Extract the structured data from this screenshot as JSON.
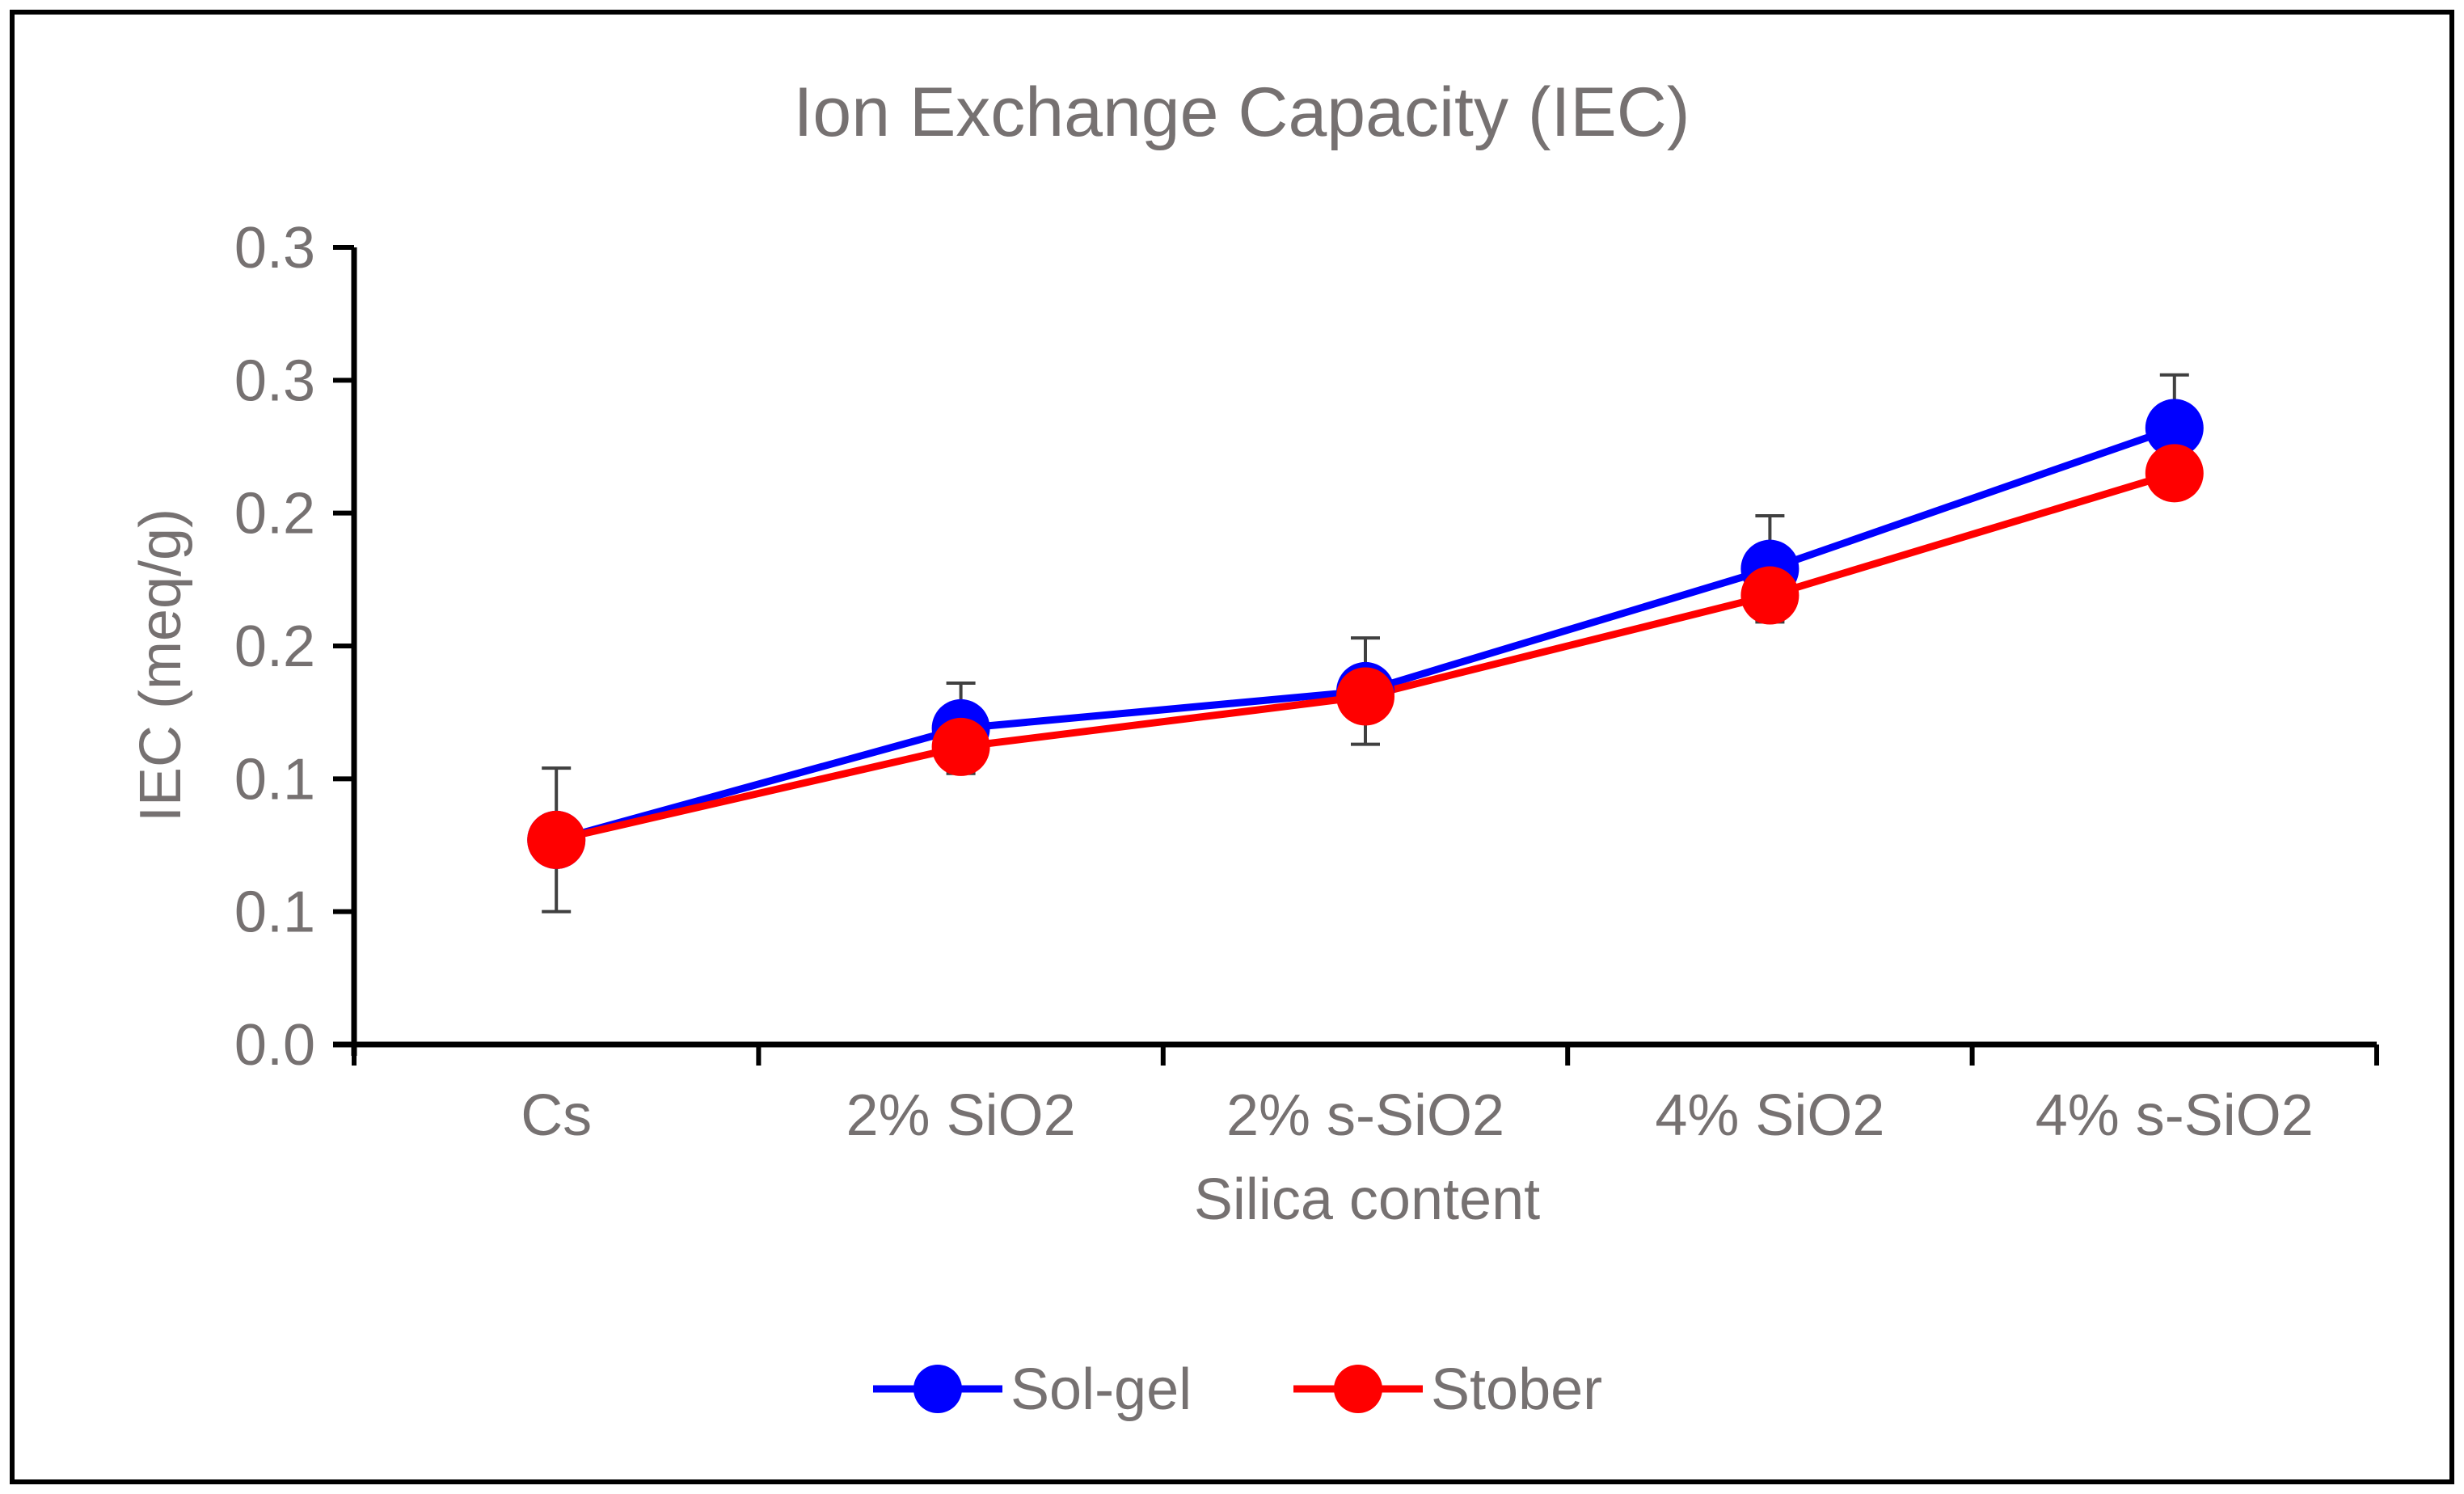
{
  "chart_data": {
    "type": "line",
    "title": "Ion Exchange Capacity (IEC)",
    "xlabel": "Silica content",
    "ylabel": "IEC (meq/g)",
    "categories": [
      "Cs",
      "2% SiO2",
      "2% s-SiO2",
      "4% SiO2",
      "4% s-SiO2"
    ],
    "ylim": [
      0,
      0.3
    ],
    "yticks": [
      0.0,
      0.05,
      0.1,
      0.15,
      0.2,
      0.25,
      0.3
    ],
    "ytick_labels": [
      "0.0",
      "0.1",
      "0.1",
      "0.2",
      "0.2",
      "0.3",
      "0.3"
    ],
    "legend_position": "bottom",
    "grid": false,
    "series": [
      {
        "name": "Sol-gel",
        "color": "#0000FF",
        "values": [
          0.077,
          0.119,
          0.133,
          0.179,
          0.232
        ],
        "error": [
          0,
          0.017,
          0.02,
          0.02,
          0.02
        ]
      },
      {
        "name": "Stober",
        "color": "#FF0000",
        "values": [
          0.077,
          0.112,
          0.131,
          0.169,
          0.215
        ],
        "error": [
          0.027,
          0,
          0,
          0,
          0
        ]
      }
    ]
  }
}
